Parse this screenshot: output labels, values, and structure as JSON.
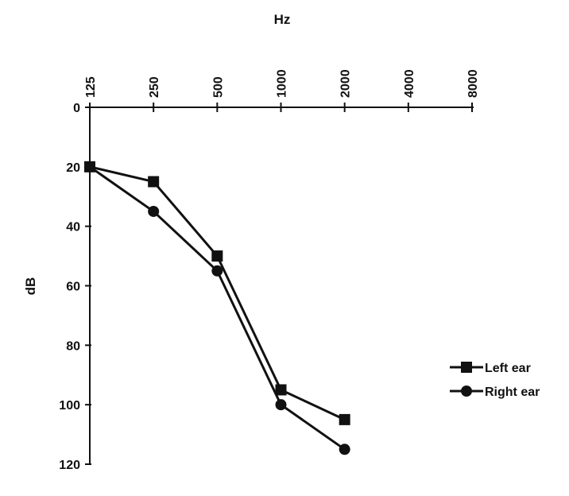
{
  "chart_data": {
    "type": "line",
    "title": "",
    "xlabel": "Hz",
    "ylabel": "dB",
    "x_categories": [
      "125",
      "250",
      "500",
      "1000",
      "2000",
      "4000",
      "8000"
    ],
    "y_ticks": [
      0,
      20,
      40,
      60,
      80,
      100,
      120
    ],
    "ylim": [
      0,
      120
    ],
    "y_inverted": true,
    "x_axis_position": "top",
    "grid": false,
    "legend_position": "right",
    "series": [
      {
        "name": "Left ear",
        "marker": "square",
        "x": [
          "125",
          "250",
          "500",
          "1000",
          "2000"
        ],
        "values": [
          20,
          25,
          50,
          95,
          105
        ]
      },
      {
        "name": "Right ear",
        "marker": "circle",
        "x": [
          "125",
          "250",
          "500",
          "1000",
          "2000"
        ],
        "values": [
          20,
          35,
          55,
          100,
          115
        ]
      }
    ],
    "colors": {
      "line": "#111111",
      "background": "#ffffff"
    }
  }
}
